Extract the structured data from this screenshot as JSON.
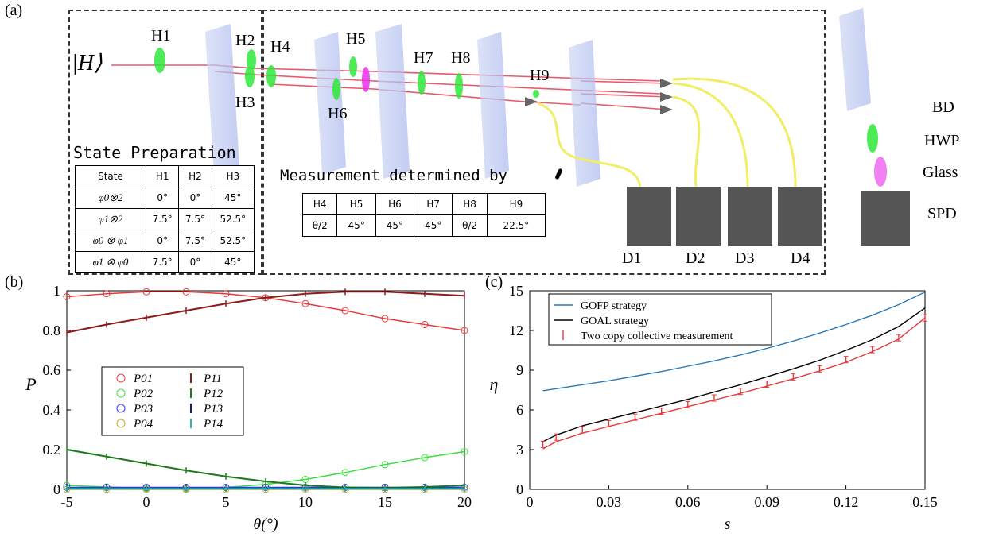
{
  "panel_a": {
    "label": "(a)",
    "input_state": "|H⟩",
    "section_left": "State Preparation",
    "section_right": "Measurement determined by",
    "elements": [
      "H1",
      "H2",
      "H3",
      "H4",
      "H5",
      "H6",
      "H7",
      "H8",
      "H9"
    ],
    "detectors": [
      "D1",
      "D2",
      "D3",
      "D4"
    ],
    "legend": [
      "BD",
      "HWP",
      "Glass",
      "SPD"
    ],
    "state_table": {
      "headers": [
        "State",
        "H1",
        "H2",
        "H3"
      ],
      "rows": [
        [
          "φ0⊗2",
          "0°",
          "0°",
          "45°"
        ],
        [
          "φ1⊗2",
          "7.5°",
          "7.5°",
          "52.5°"
        ],
        [
          "φ0 ⊗ φ1",
          "0°",
          "7.5°",
          "52.5°"
        ],
        [
          "φ1 ⊗ φ0",
          "7.5°",
          "0°",
          "45°"
        ]
      ]
    },
    "meas_table": {
      "headers": [
        "H4",
        "H5",
        "H6",
        "H7",
        "H8",
        "H9"
      ],
      "row": [
        "θ/2",
        "45°",
        "45°",
        "45°",
        "θ/2",
        "22.5°"
      ]
    }
  },
  "chart_data": [
    {
      "panel": "(b)",
      "type": "scatter",
      "xlabel": "θ(°)",
      "ylabel": "P",
      "xlim": [
        -5,
        20
      ],
      "ylim": [
        0,
        1
      ],
      "xticks": [
        "-5",
        "0",
        "5",
        "10",
        "15",
        "20"
      ],
      "yticks": [
        "0",
        "0.2",
        "0.4",
        "0.6",
        "0.8",
        "1"
      ],
      "legend_position": "center-left",
      "x": [
        -5,
        -2.5,
        0,
        2.5,
        5,
        7.5,
        10,
        12.5,
        15,
        17.5,
        20
      ],
      "series": [
        {
          "name": "P01",
          "color": "#e8383a",
          "values": [
            0.97,
            0.985,
            0.995,
            0.995,
            0.985,
            0.965,
            0.935,
            0.9,
            0.86,
            0.83,
            0.8
          ]
        },
        {
          "name": "P02",
          "color": "#3adf3a",
          "values": [
            0.02,
            0.012,
            0.005,
            0.003,
            0.01,
            0.025,
            0.05,
            0.085,
            0.125,
            0.16,
            0.19
          ]
        },
        {
          "name": "P03",
          "color": "#3a3aff",
          "values": [
            0.01,
            0.01,
            0.01,
            0.01,
            0.01,
            0.01,
            0.01,
            0.01,
            0.01,
            0.01,
            0.01
          ]
        },
        {
          "name": "P04",
          "color": "#c8a830",
          "values": [
            0,
            0,
            0,
            0,
            0,
            0,
            0,
            0,
            0,
            0,
            0
          ]
        },
        {
          "name": "P11",
          "color": "#8b1a1a",
          "values": [
            0.79,
            0.83,
            0.865,
            0.9,
            0.935,
            0.965,
            0.985,
            0.995,
            0.995,
            0.985,
            0.975
          ]
        },
        {
          "name": "P12",
          "color": "#1a7a1a",
          "values": [
            0.2,
            0.165,
            0.13,
            0.095,
            0.065,
            0.04,
            0.02,
            0.01,
            0.008,
            0.012,
            0.02
          ]
        },
        {
          "name": "P13",
          "color": "#1a1a7a",
          "values": [
            0.005,
            0.005,
            0.005,
            0.005,
            0.005,
            0.005,
            0.005,
            0.005,
            0.005,
            0.005,
            0.005
          ]
        },
        {
          "name": "P14",
          "color": "#20b8b8",
          "values": [
            0.003,
            0.003,
            0.003,
            0.003,
            0.003,
            0.003,
            0.003,
            0.003,
            0.003,
            0.003,
            0.003
          ]
        }
      ]
    },
    {
      "panel": "(c)",
      "type": "line",
      "xlabel": "s",
      "ylabel": "η",
      "xlim": [
        0,
        0.15
      ],
      "ylim": [
        0,
        15
      ],
      "xticks": [
        "0",
        "0.03",
        "0.06",
        "0.09",
        "0.12",
        "0.15"
      ],
      "yticks": [
        "0",
        "3",
        "6",
        "9",
        "12",
        "15"
      ],
      "legend_position": "top-left",
      "x": [
        0.005,
        0.01,
        0.02,
        0.03,
        0.04,
        0.05,
        0.06,
        0.07,
        0.08,
        0.09,
        0.1,
        0.11,
        0.12,
        0.13,
        0.14,
        0.15
      ],
      "series": [
        {
          "name": "GOFP strategy",
          "color": "#2a7ab8",
          "values": [
            7.45,
            7.6,
            7.9,
            8.2,
            8.55,
            8.9,
            9.3,
            9.7,
            10.15,
            10.65,
            11.2,
            11.8,
            12.45,
            13.15,
            13.95,
            14.9
          ]
        },
        {
          "name": "GOAL strategy",
          "color": "#000000",
          "values": [
            3.6,
            4.1,
            4.8,
            5.3,
            5.8,
            6.3,
            6.8,
            7.35,
            7.9,
            8.5,
            9.1,
            9.75,
            10.5,
            11.3,
            12.3,
            13.7
          ]
        },
        {
          "name": "Two copy collective measurement",
          "color": "#e8383a",
          "values": [
            3.4,
            3.95,
            4.5,
            4.95,
            5.45,
            5.9,
            6.4,
            6.9,
            7.4,
            7.95,
            8.5,
            9.1,
            9.8,
            10.55,
            11.45,
            12.95
          ]
        }
      ],
      "fit_line": {
        "color": "#e8383a",
        "values": [
          3.05,
          3.6,
          4.25,
          4.75,
          5.25,
          5.75,
          6.25,
          6.75,
          7.25,
          7.8,
          8.35,
          8.95,
          9.6,
          10.4,
          11.35,
          12.95
        ]
      }
    }
  ]
}
